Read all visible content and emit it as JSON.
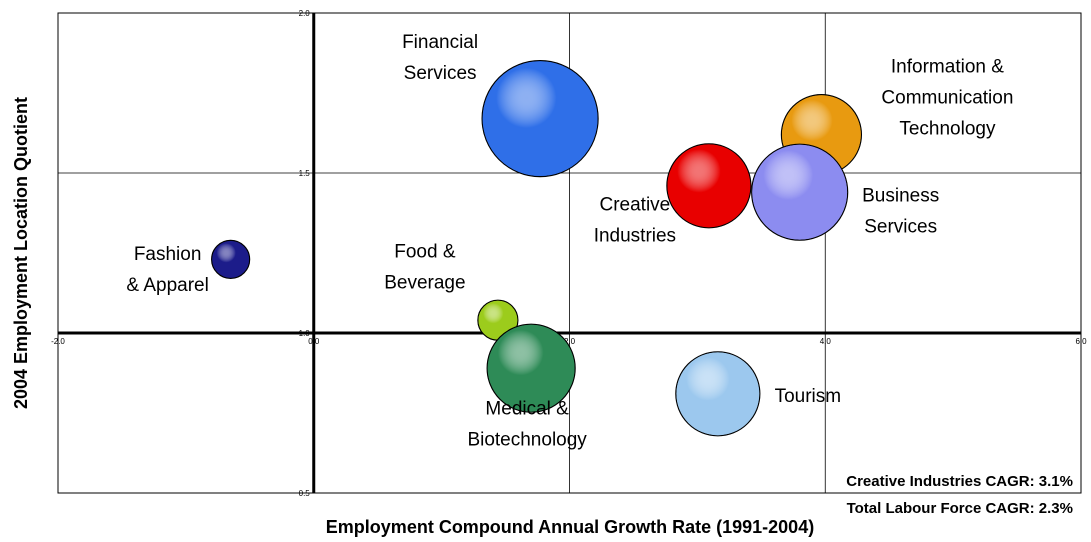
{
  "chart_data": {
    "type": "bubble",
    "x_label": "Employment Compound Annual Growth Rate (1991-2004)",
    "y_label": "2004 Employment Location Quotient",
    "xlim": [
      -2,
      6
    ],
    "xticks": [
      {
        "value": -2,
        "label": "-2.0"
      },
      {
        "value": 0,
        "label": "0.0"
      },
      {
        "value": 2,
        "label": "2.0"
      },
      {
        "value": 4,
        "label": "4.0"
      },
      {
        "value": 6,
        "label": "6.0"
      }
    ],
    "ylim": [
      0.5,
      2
    ],
    "yticks": [
      0.5,
      {
        "value": 1,
        "label": "1.0"
      },
      1.5,
      {
        "value": 2,
        "label": "2.0"
      }
    ],
    "origin": [
      0,
      1
    ],
    "grid": true,
    "points": [
      {
        "label": [
          "Fashion",
          "& Apparel"
        ],
        "x": -0.65,
        "y": 1.23,
        "size": 19,
        "color": "#1c1c8a"
      },
      {
        "label": [
          "Financial",
          "Services"
        ],
        "x": 1.77,
        "y": 1.67,
        "size": 58,
        "color": "#2f6fe8"
      },
      {
        "label": [
          "Food &",
          "Beverage"
        ],
        "x": 1.44,
        "y": 1.04,
        "size": 20,
        "color": "#9ccc1c"
      },
      {
        "label": [
          "Medical &",
          "Biotechnology"
        ],
        "x": 1.7,
        "y": 0.89,
        "size": 44,
        "color": "#2e8b57"
      },
      {
        "label": [
          "Creative",
          "Industries"
        ],
        "x": 3.09,
        "y": 1.46,
        "size": 42,
        "color": "#e80000"
      },
      {
        "label": [
          "Information &",
          "Communication",
          "Technology"
        ],
        "x": 3.97,
        "y": 1.62,
        "size": 40,
        "color": "#e89a10"
      },
      {
        "label": [
          "Business",
          "Services"
        ],
        "x": 3.8,
        "y": 1.44,
        "size": 48,
        "color": "#8c8cf0"
      },
      {
        "label": [
          "Tourism"
        ],
        "x": 3.16,
        "y": 0.81,
        "size": 42,
        "color": "#9cc8ee"
      }
    ],
    "annotations": [
      "Creative Industries CAGR: 3.1%",
      "Total Labour Force CAGR: 2.3%"
    ]
  }
}
